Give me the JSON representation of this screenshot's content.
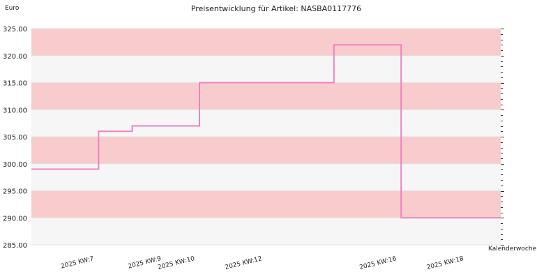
{
  "chart_data": {
    "type": "line",
    "title": "Preisentwicklung für Artikel: NASBA0117776",
    "ylabel": "Euro",
    "xlabel": "Kalenderwoche",
    "ylim": [
      285,
      325
    ],
    "ytick_values": [
      285,
      290,
      295,
      300,
      305,
      310,
      315,
      320,
      325
    ],
    "ytick_labels": [
      "285.00",
      "290.00",
      "295.00",
      "300.00",
      "305.00",
      "310.00",
      "315.00",
      "320.00",
      "325.00"
    ],
    "x": [
      "2025 KW:7",
      "2025 KW:9",
      "2025 KW:10",
      "2025 KW:12",
      "2025 KW:16",
      "2025 KW:18"
    ],
    "series": [
      {
        "values": [
          299,
          306,
          307,
          315,
          322,
          290
        ]
      }
    ],
    "step": true,
    "grid": true,
    "band_colors": [
      "#f8cccc",
      "#f6f6f6"
    ],
    "line_color": "#ee82c0"
  }
}
